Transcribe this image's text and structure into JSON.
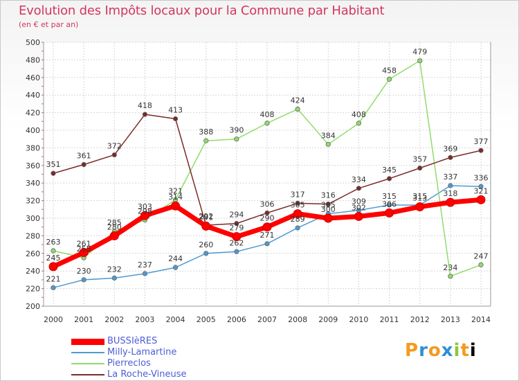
{
  "header": {
    "title": "Evolution des Impôts locaux pour la Commune par Habitant",
    "subtitle": "(en € et par an)"
  },
  "logo": {
    "letters": [
      "P",
      "r",
      "o",
      "x",
      "i",
      "t",
      "i"
    ]
  },
  "chart_data": {
    "type": "line",
    "title": "Evolution des Impôts locaux pour la Commune par Habitant",
    "subtitle": "(en € et par an)",
    "x": [
      "2000",
      "2001",
      "2002",
      "2003",
      "2004",
      "2005",
      "2006",
      "2007",
      "2008",
      "2009",
      "2010",
      "2011",
      "2012",
      "2013",
      "2014"
    ],
    "ylim": [
      200,
      500
    ],
    "yticks": [
      200,
      220,
      240,
      260,
      280,
      300,
      320,
      340,
      360,
      380,
      400,
      420,
      440,
      460,
      480,
      500
    ],
    "grid": true,
    "legend_position": "bottom-left",
    "series": [
      {
        "name": "BUSSIèRES",
        "color": "#ff0000",
        "values": [
          245,
          261,
          280,
          303,
          314,
          291,
          279,
          290,
          305,
          300,
          302,
          306,
          313,
          318,
          321
        ],
        "labels": [
          "245",
          "261",
          "280",
          "303",
          "314",
          "291",
          "279",
          "290",
          "305",
          "300",
          "302",
          "306",
          "313",
          "318",
          "321"
        ]
      },
      {
        "name": "Milly-Lamartine",
        "color": "#4f9ad1",
        "values": [
          221,
          230,
          232,
          237,
          244,
          260,
          262,
          271,
          289,
          305,
          309,
          315,
          315,
          337,
          336
        ],
        "labels": [
          "221",
          "230",
          "232",
          "237",
          "244",
          "260",
          "262",
          "271",
          "289",
          "305",
          "309",
          "315",
          "315",
          "337",
          "336"
        ]
      },
      {
        "name": "Pierreclos",
        "color": "#8fdc6a",
        "values": [
          263,
          255,
          285,
          298,
          321,
          388,
          390,
          408,
          424,
          384,
          408,
          458,
          479,
          234,
          247
        ],
        "labels": [
          "263",
          "255",
          "285",
          "298",
          "321",
          "388",
          "390",
          "408",
          "424",
          "384",
          "408",
          "458",
          "479",
          "234",
          "247"
        ]
      },
      {
        "name": "La Roche-Vineuse",
        "color": "#7a2a2a",
        "values": [
          351,
          361,
          372,
          418,
          413,
          292,
          294,
          306,
          317,
          316,
          334,
          345,
          357,
          369,
          377
        ],
        "labels": [
          "351",
          "361",
          "372",
          "418",
          "413",
          "292",
          "294",
          "306",
          "317",
          "316",
          "334",
          "345",
          "357",
          "369",
          "377"
        ]
      }
    ]
  }
}
